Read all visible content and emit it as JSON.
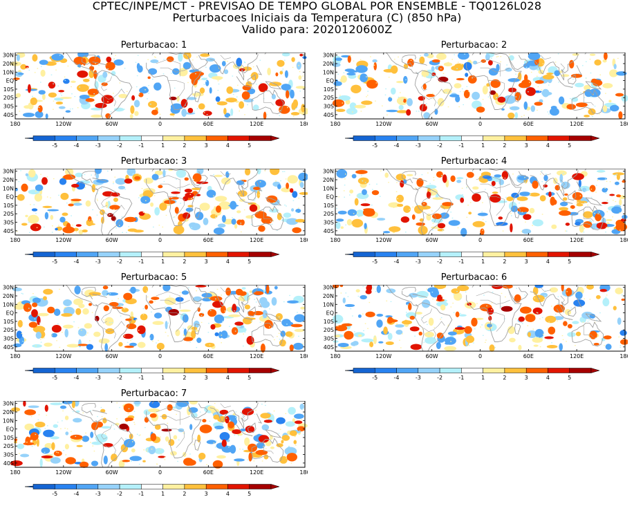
{
  "header": {
    "line1": "CPTEC/INPE/MCT - PREVISAO DE TEMPO GLOBAL POR ENSEMBLE - TQ0126L028",
    "line2": "Perturbacoes Iniciais da Temperatura (C) (850 hPa)",
    "line3": "Valido para: 2020120600Z"
  },
  "panels": [
    {
      "title": "Perturbacao: 1"
    },
    {
      "title": "Perturbacao: 2"
    },
    {
      "title": "Perturbacao: 3"
    },
    {
      "title": "Perturbacao: 4"
    },
    {
      "title": "Perturbacao: 5"
    },
    {
      "title": "Perturbacao: 6"
    },
    {
      "title": "Perturbacao: 7"
    }
  ],
  "lat_labels": [
    "30N",
    "20N",
    "10N",
    "EQ",
    "10S",
    "20S",
    "30S",
    "40S"
  ],
  "lon_labels": [
    "180",
    "120W",
    "60W",
    "0",
    "60E",
    "120E",
    "180"
  ],
  "colorbar": {
    "ticks": [
      "-5",
      "-4",
      "-3",
      "-2",
      "-1",
      "1",
      "2",
      "3",
      "4",
      "5"
    ],
    "colors": [
      "#1464d2",
      "#2882f0",
      "#50a5f5",
      "#96d2fa",
      "#b4f0fa",
      "#ffffff",
      "#fff0a0",
      "#ffc03c",
      "#ff6000",
      "#e11400",
      "#a50000"
    ]
  },
  "map_colors": {
    "land": "#a0a0a0",
    "frame": "#000000"
  }
}
